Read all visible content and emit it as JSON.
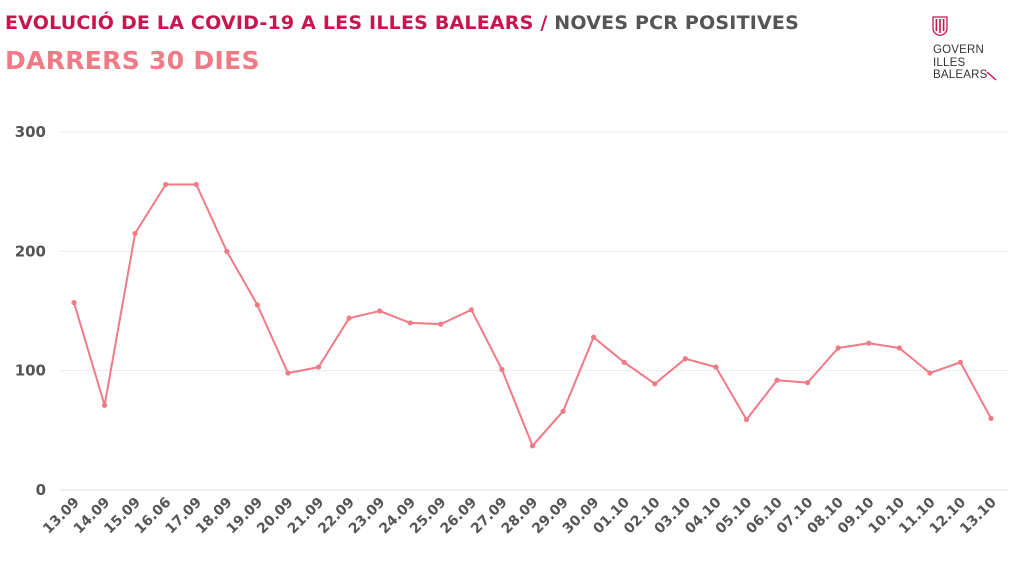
{
  "header": {
    "title_main": "EVOLUCIÓ DE LA COVID-19 A LES ILLES BALEARS",
    "title_sep": " / ",
    "title_sub": "NOVES PCR POSITIVES",
    "subtitle": "DARRERS 30 DIES"
  },
  "logo": {
    "line1": "GOVERN",
    "line2": "ILLES",
    "line3": "BALEARS",
    "icon": "govern-illes-balears-logo",
    "color": "#c8154d"
  },
  "chart_data": {
    "type": "line",
    "title": "",
    "xlabel": "",
    "ylabel": "",
    "ylim": [
      0,
      300
    ],
    "yticks": [
      0,
      100,
      200,
      300
    ],
    "grid": true,
    "color": "#f07a86",
    "categories": [
      "13.09",
      "14.09",
      "15.09",
      "16.06",
      "17.09",
      "18.09",
      "19.09",
      "20.09",
      "21.09",
      "22.09",
      "23.09",
      "24.09",
      "25.09",
      "26.09",
      "27.09",
      "28.09",
      "29.09",
      "30.09",
      "01.10",
      "02.10",
      "03.10",
      "04.10",
      "05.10",
      "06.10",
      "07.10",
      "08.10",
      "09.10",
      "10.10",
      "11.10",
      "12.10",
      "13.10"
    ],
    "values": [
      157,
      71,
      215,
      256,
      256,
      200,
      155,
      98,
      103,
      144,
      150,
      140,
      139,
      151,
      101,
      37,
      66,
      128,
      107,
      89,
      110,
      103,
      59,
      92,
      90,
      119,
      123,
      119,
      98,
      107,
      60
    ]
  }
}
